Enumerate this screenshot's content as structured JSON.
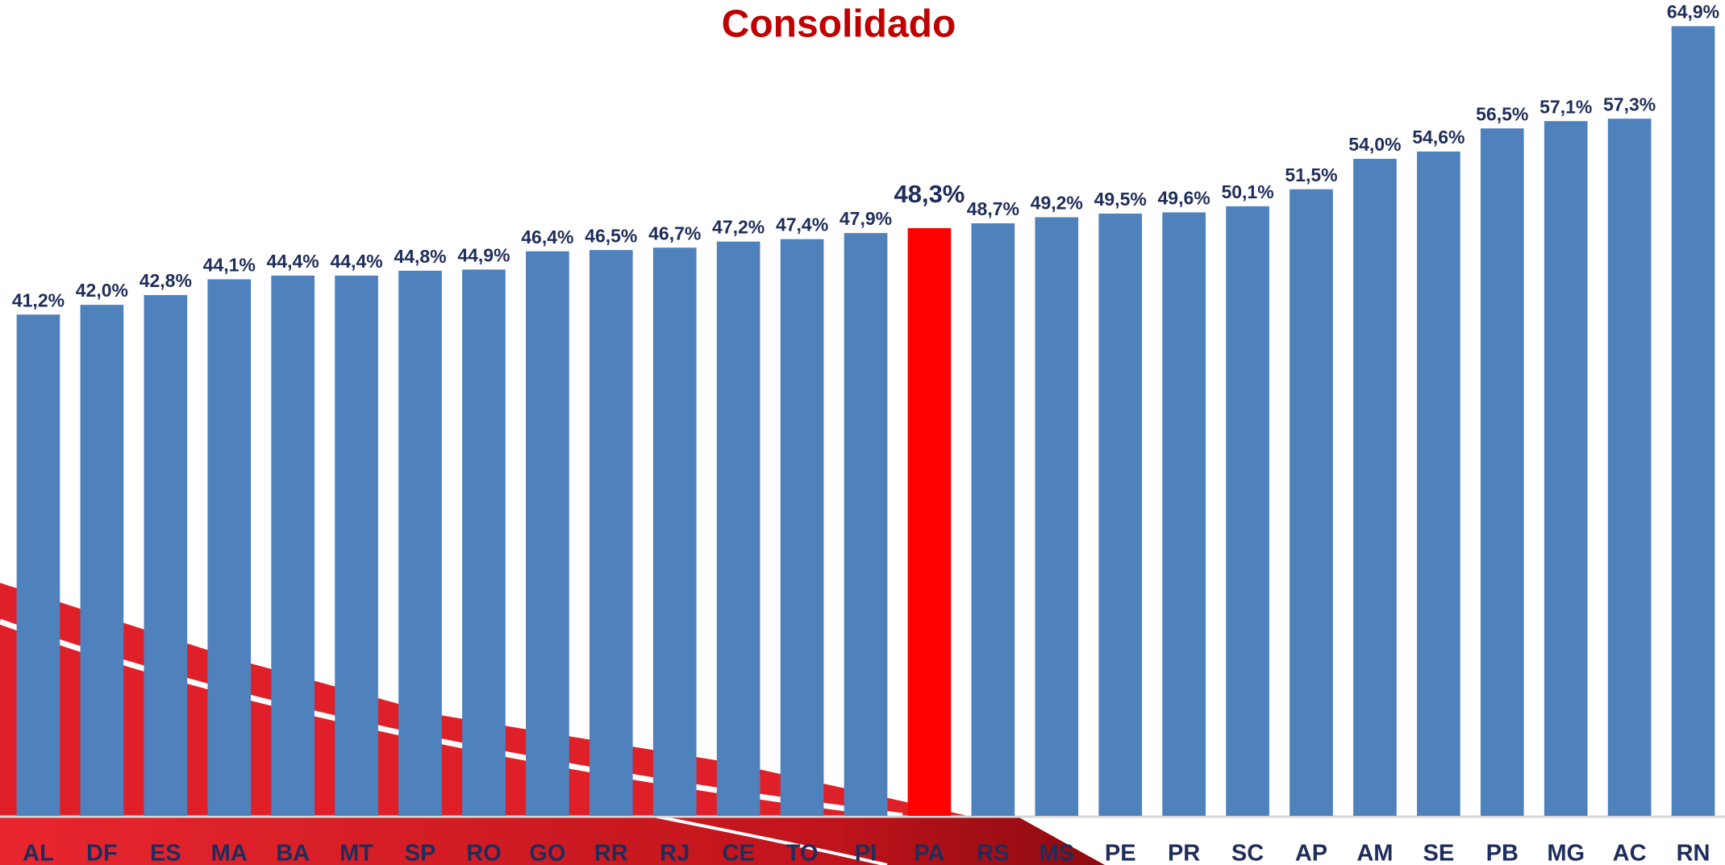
{
  "chart_data": {
    "type": "bar",
    "title": "Consolidado",
    "categories": [
      "AL",
      "DF",
      "ES",
      "MA",
      "BA",
      "MT",
      "SP",
      "RO",
      "GO",
      "RR",
      "RJ",
      "CE",
      "TO",
      "PI",
      "PA",
      "RS",
      "MS",
      "PE",
      "PR",
      "SC",
      "AP",
      "AM",
      "SE",
      "PB",
      "MG",
      "AC",
      "RN"
    ],
    "values": [
      41.2,
      42.0,
      42.8,
      44.1,
      44.4,
      44.4,
      44.8,
      44.9,
      46.4,
      46.5,
      46.7,
      47.2,
      47.4,
      47.9,
      48.3,
      48.7,
      49.2,
      49.5,
      49.6,
      50.1,
      51.5,
      54.0,
      54.6,
      56.5,
      57.1,
      57.3,
      64.9
    ],
    "value_labels": [
      "41,2%",
      "42,0%",
      "42,8%",
      "44,1%",
      "44,4%",
      "44,4%",
      "44,8%",
      "44,9%",
      "46,4%",
      "46,5%",
      "46,7%",
      "47,2%",
      "47,4%",
      "47,9%",
      "48,3%",
      "48,7%",
      "49,2%",
      "49,5%",
      "49,6%",
      "50,1%",
      "51,5%",
      "54,0%",
      "54,6%",
      "56,5%",
      "57,1%",
      "57,3%",
      "64,9%"
    ],
    "color": "#4f81bd",
    "colors": [
      "#4f81bd",
      "#4f81bd",
      "#4f81bd",
      "#4f81bd",
      "#4f81bd",
      "#4f81bd",
      "#4f81bd",
      "#4f81bd",
      "#4f81bd",
      "#4f81bd",
      "#4f81bd",
      "#4f81bd",
      "#4f81bd",
      "#4f81bd",
      "#ff0000",
      "#4f81bd",
      "#4f81bd",
      "#4f81bd",
      "#4f81bd",
      "#4f81bd",
      "#4f81bd",
      "#4f81bd",
      "#4f81bd",
      "#4f81bd",
      "#4f81bd",
      "#4f81bd",
      "#4f81bd"
    ],
    "ylim": [
      0,
      65
    ]
  }
}
